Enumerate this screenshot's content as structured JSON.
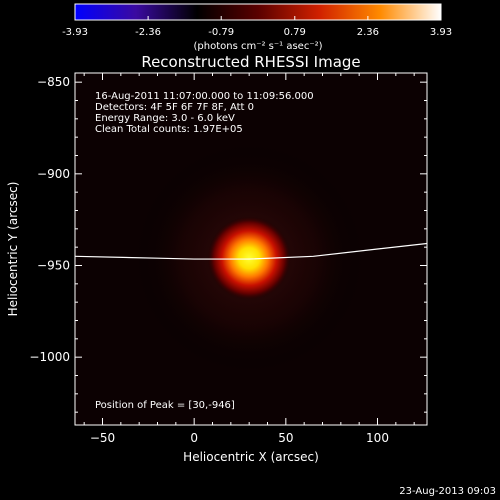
{
  "colorbar": {
    "ticks": [
      "-3.93",
      "-2.36",
      "-0.79",
      "0.79",
      "2.36",
      "3.93"
    ],
    "range": [
      -3.93,
      3.93
    ],
    "unit_label": "(photons cm⁻² s⁻¹ asec⁻²)",
    "colors": [
      "#0000ff",
      "#3a0aa0",
      "#000000",
      "#5a0000",
      "#d02000",
      "#ff8a00",
      "#ffffff"
    ]
  },
  "chart_data": {
    "type": "heatmap",
    "title": "Reconstructed RHESSI Image",
    "xlabel": "Heliocentric X (arcsec)",
    "ylabel": "Heliocentric Y (arcsec)",
    "xlim": [
      -65,
      127
    ],
    "ylim": [
      -1037,
      -845
    ],
    "xticks": [
      -50,
      0,
      50,
      100
    ],
    "yticks": [
      -850,
      -900,
      -950,
      -1000
    ],
    "annotations": [
      "16-Aug-2011 11:07:00.000 to 11:09:56.000",
      "Detectors: 4F 5F 6F 7F 8F, Att 0",
      "Energy Range: 3.0 - 6.0 keV",
      "Clean    Total counts: 1.97E+05"
    ],
    "peak": {
      "x": 30,
      "y": -946,
      "label": "Position of Peak = [30,-946]"
    },
    "limb": {
      "x": [
        -65,
        -20,
        0,
        30,
        65,
        100,
        127
      ],
      "y": [
        -945,
        -946,
        -946.5,
        -946.5,
        -945,
        -941,
        -938
      ]
    },
    "source_color": "#ffee00"
  },
  "footer": {
    "timestamp": "23-Aug-2013 09:03"
  }
}
